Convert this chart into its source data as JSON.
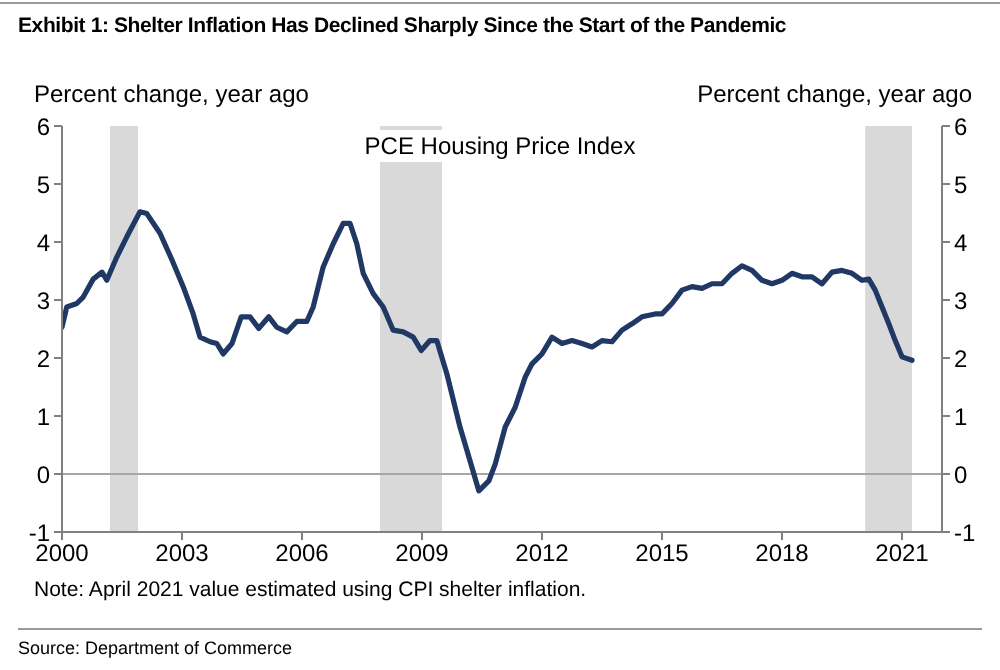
{
  "chart_data": {
    "type": "line",
    "title": "Exhibit 1: Shelter Inflation Has Declined Sharply Since the Start of the Pandemic",
    "ylabel": "Percent change, year ago",
    "y2label": "Percent change, year ago",
    "x": [
      2000,
      2000.12,
      2000.37,
      2000.53,
      2000.78,
      2001.0,
      2001.12,
      2001.37,
      2001.62,
      2001.95,
      2002.12,
      2002.45,
      2002.75,
      2003.03,
      2003.28,
      2003.45,
      2003.7,
      2003.87,
      2004.03,
      2004.25,
      2004.48,
      2004.7,
      2004.92,
      2005.17,
      2005.37,
      2005.62,
      2005.87,
      2006.12,
      2006.28,
      2006.53,
      2006.78,
      2007.03,
      2007.2,
      2007.37,
      2007.53,
      2007.78,
      2008.03,
      2008.28,
      2008.53,
      2008.78,
      2008.98,
      2009.2,
      2009.37,
      2009.62,
      2009.95,
      2010.2,
      2010.42,
      2010.67,
      2010.83,
      2011.08,
      2011.33,
      2011.58,
      2011.75,
      2012.0,
      2012.25,
      2012.5,
      2012.75,
      2013.0,
      2013.25,
      2013.5,
      2013.75,
      2014.0,
      2014.25,
      2014.5,
      2014.83,
      2015.0,
      2015.25,
      2015.5,
      2015.75,
      2016.0,
      2016.25,
      2016.5,
      2016.75,
      2017.0,
      2017.25,
      2017.5,
      2017.75,
      2018.0,
      2018.25,
      2018.5,
      2018.75,
      2019.0,
      2019.25,
      2019.5,
      2019.75,
      2020.0,
      2020.17,
      2020.33,
      2020.5,
      2020.67,
      2020.83,
      2021.0,
      2021.25
    ],
    "series": [
      {
        "name": "PCE Housing Price Index",
        "color": "#1f3864",
        "values": [
          2.53,
          2.88,
          2.94,
          3.05,
          3.36,
          3.48,
          3.34,
          3.74,
          4.09,
          4.52,
          4.49,
          4.15,
          3.69,
          3.23,
          2.76,
          2.36,
          2.28,
          2.25,
          2.07,
          2.25,
          2.71,
          2.71,
          2.51,
          2.71,
          2.53,
          2.45,
          2.63,
          2.63,
          2.88,
          3.57,
          3.97,
          4.32,
          4.32,
          3.97,
          3.46,
          3.11,
          2.88,
          2.48,
          2.45,
          2.36,
          2.13,
          2.3,
          2.3,
          1.73,
          0.81,
          0.23,
          -0.29,
          -0.12,
          0.17,
          0.81,
          1.15,
          1.67,
          1.9,
          2.07,
          2.36,
          2.25,
          2.3,
          2.25,
          2.19,
          2.3,
          2.28,
          2.48,
          2.59,
          2.71,
          2.76,
          2.76,
          2.94,
          3.17,
          3.23,
          3.2,
          3.28,
          3.28,
          3.46,
          3.59,
          3.51,
          3.34,
          3.28,
          3.34,
          3.46,
          3.4,
          3.4,
          3.28,
          3.48,
          3.51,
          3.46,
          3.34,
          3.36,
          3.17,
          2.88,
          2.59,
          2.3,
          2.02,
          1.96
        ]
      }
    ],
    "xlim": [
      2000,
      2022
    ],
    "xticks": [
      2000,
      2003,
      2006,
      2009,
      2012,
      2015,
      2018,
      2021
    ],
    "ylim": [
      -1,
      6
    ],
    "yticks": [
      -1,
      0,
      1,
      2,
      3,
      4,
      5,
      6
    ],
    "y2lim": [
      -1,
      6
    ],
    "y2ticks": [
      -1,
      0,
      1,
      2,
      3,
      4,
      5,
      6
    ],
    "bands": [
      {
        "axis": "x",
        "from": 2001.2,
        "to": 2001.9,
        "color": "#d9d9d9"
      },
      {
        "axis": "x",
        "from": 2007.95,
        "to": 2009.5,
        "color": "#d9d9d9"
      },
      {
        "axis": "x",
        "from": 2020.08,
        "to": 2021.25,
        "color": "#d9d9d9"
      }
    ],
    "ref_lines": [
      {
        "axis": "y",
        "value": 0,
        "color": "#a6a6a6"
      }
    ],
    "annotations": [
      "Note: April 2021 value estimated using CPI shelter inflation.",
      "Source: Department of Commerce"
    ]
  }
}
